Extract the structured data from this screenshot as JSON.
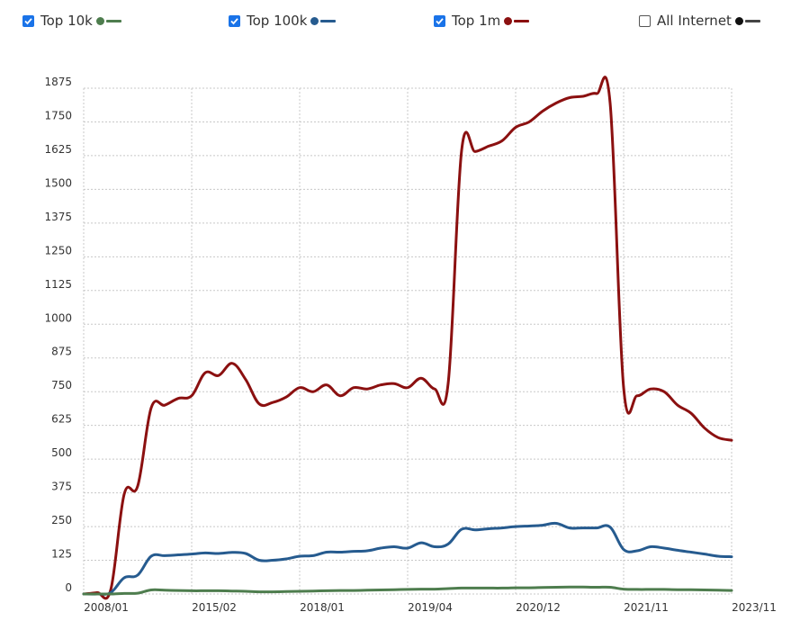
{
  "legend": [
    {
      "label": "Top 10k",
      "checked": true,
      "color": "#4e7d4e"
    },
    {
      "label": "Top 100k",
      "checked": true,
      "color": "#265b8f"
    },
    {
      "label": "Top 1m",
      "checked": true,
      "color": "#8b1010"
    },
    {
      "label": "All Internet",
      "checked": false,
      "color": "#222222"
    }
  ],
  "chart_data": {
    "type": "line",
    "title": "",
    "xlabel": "",
    "ylabel": "",
    "ylim": [
      0,
      1875
    ],
    "yticks": [
      0,
      125,
      250,
      375,
      500,
      625,
      750,
      875,
      1000,
      1125,
      1250,
      1375,
      1500,
      1625,
      1750,
      1875
    ],
    "xticks": [
      "2008/01",
      "2015/02",
      "2018/01",
      "2019/04",
      "2020/12",
      "2021/11",
      "2023/11"
    ],
    "grid": true,
    "legend_position": "top",
    "series": [
      {
        "name": "Top 1m",
        "color": "#8b1010",
        "values": [
          0,
          5,
          15,
          370,
          400,
          690,
          700,
          725,
          735,
          820,
          810,
          855,
          795,
          705,
          710,
          730,
          765,
          750,
          775,
          735,
          765,
          760,
          775,
          780,
          765,
          800,
          760,
          780,
          1645,
          1640,
          1660,
          1680,
          1730,
          1750,
          1790,
          1820,
          1840,
          1845,
          1855,
          1820,
          765,
          735,
          760,
          750,
          700,
          670,
          615,
          580,
          570
        ]
      },
      {
        "name": "Top 100k",
        "color": "#265b8f",
        "values": [
          0,
          0,
          5,
          60,
          70,
          140,
          142,
          145,
          148,
          152,
          150,
          154,
          150,
          125,
          125,
          130,
          140,
          142,
          155,
          155,
          158,
          160,
          170,
          175,
          170,
          190,
          175,
          185,
          240,
          238,
          242,
          245,
          250,
          252,
          255,
          262,
          245,
          245,
          245,
          248,
          165,
          160,
          175,
          170,
          162,
          155,
          148,
          140,
          138
        ]
      },
      {
        "name": "Top 10k",
        "color": "#4e7d4e",
        "values": [
          0,
          0,
          0,
          2,
          3,
          15,
          14,
          13,
          12,
          12,
          12,
          11,
          10,
          8,
          8,
          9,
          10,
          11,
          12,
          13,
          13,
          14,
          15,
          16,
          17,
          18,
          18,
          20,
          22,
          22,
          22,
          22,
          23,
          23,
          24,
          25,
          26,
          26,
          25,
          25,
          18,
          17,
          17,
          17,
          16,
          16,
          15,
          14,
          13
        ]
      },
      {
        "name": "All Internet",
        "color": "#222222",
        "values": []
      }
    ]
  }
}
